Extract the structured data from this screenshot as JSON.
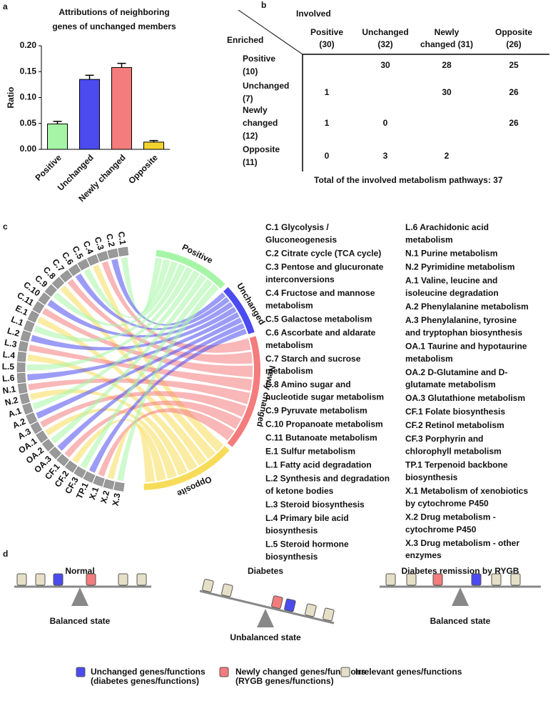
{
  "panel_labels": [
    "a",
    "b",
    "c",
    "d"
  ],
  "chart_data": {
    "type": "bar",
    "title": [
      "Attributions of neighboring",
      "genes of unchanged members"
    ],
    "y_label": "Ratio",
    "categories": [
      "Positive",
      "Unchanged",
      "Newly changed",
      "Opposite"
    ],
    "series": [
      {
        "values": [
          0.049,
          0.135,
          0.158,
          0.014
        ],
        "errors": [
          0.005,
          0.008,
          0.008,
          0.003
        ],
        "colors": [
          "#a6f5a6",
          "#4b4bf0",
          "#f47c7c",
          "#f2d22e"
        ]
      }
    ],
    "ylim": [
      0,
      0.2
    ],
    "yticks": [
      {
        "value": 0,
        "label": "0.00"
      },
      {
        "value": 0.05,
        "label": "0.05"
      },
      {
        "value": 0.1,
        "label": "0.10"
      },
      {
        "value": 0.15,
        "label": "0.15"
      },
      {
        "value": 0.2,
        "label": "0.20"
      }
    ]
  },
  "table": {
    "corner_top": "Involved",
    "corner_left": "Enriched",
    "columns": [
      [
        "Positive",
        "(30)"
      ],
      [
        "Unchanged",
        "(32)"
      ],
      [
        "Newly",
        "changed (31)"
      ],
      [
        "Opposite",
        "(26)"
      ]
    ],
    "row_headers": [
      [
        "Positive",
        "(10)"
      ],
      [
        "Unchanged",
        "(7)"
      ],
      [
        "Newly",
        "changed",
        "(12)"
      ],
      [
        "Opposite",
        "(11)"
      ]
    ],
    "rows": [
      [
        "",
        "30",
        "28",
        "25"
      ],
      [
        "1",
        "",
        "30",
        "26"
      ],
      [
        "1",
        "0",
        "",
        "26"
      ],
      [
        "0",
        "3",
        "2",
        ""
      ]
    ],
    "footer": "Total of the involved metabolism pathways: 37"
  },
  "chord": {
    "groups": [
      {
        "name": "Positive",
        "color": "#a6f5a6"
      },
      {
        "name": "Unchanged",
        "color": "#4b4bf0"
      },
      {
        "name": "Newly changed",
        "color": "#f47c7c"
      },
      {
        "name": "Opposite",
        "color": "#f7dc5a"
      }
    ],
    "pathways": [
      "C.1",
      "C.2",
      "C.3",
      "C.4",
      "C.5",
      "C.6",
      "C.7",
      "C.8",
      "C.9",
      "C.10",
      "C.11",
      "E.1",
      "L.1",
      "L.2",
      "L.3",
      "L.4",
      "L.5",
      "L.6",
      "N.1",
      "N.2",
      "A.1",
      "A.2",
      "A.3",
      "OA.1",
      "OA.2",
      "OA.3",
      "CF.1",
      "CF.2",
      "CF.3",
      "TP.1",
      "X.1",
      "X.2",
      "X.3"
    ]
  },
  "legend_columns": [
    [
      [
        "C.1 Glycolysis /",
        "Gluconeogenesis"
      ],
      [
        "C.2 Citrate cycle (TCA cycle)"
      ],
      [
        "C.3 Pentose and glucuronate",
        "interconversions"
      ],
      [
        "C.4 Fructose and mannose",
        "metabolism"
      ],
      [
        "C.5 Galactose metabolism"
      ],
      [
        "C.6 Ascorbate and aldarate",
        "metabolism"
      ],
      [
        "C.7 Starch and sucrose",
        "metabolism"
      ],
      [
        "C.8 Amino sugar and",
        "nucleotide sugar metabolism"
      ],
      [
        "C.9 Pyruvate metabolism"
      ],
      [
        "C.10 Propanoate metabolism"
      ],
      [
        "C.11 Butanoate metabolism"
      ],
      [
        "E.1 Sulfur metabolism"
      ],
      [
        "L.1 Fatty acid degradation"
      ],
      [
        "L.2 Synthesis and degradation",
        "of ketone bodies"
      ],
      [
        "L.3 Steroid biosynthesis"
      ],
      [
        "L.4 Primary bile acid",
        "biosynthesis"
      ],
      [
        "L.5 Steroid hormone",
        "biosynthesis"
      ]
    ],
    [
      [
        "L.6 Arachidonic acid",
        "metabolism"
      ],
      [
        "N.1 Purine metabolism"
      ],
      [
        "N.2 Pyrimidine metabolism"
      ],
      [
        "A.1 Valine, leucine and",
        "isoleucine degradation"
      ],
      [
        "A.2 Phenylalanine metabolism"
      ],
      [
        "A.3 Phenylalanine, tyrosine",
        "and tryptophan biosynthesis"
      ],
      [
        "OA.1 Taurine and hypotaurine",
        "metabolism"
      ],
      [
        "OA.2 D-Glutamine and D-",
        "glutamate metabolism"
      ],
      [
        "OA.3 Glutathione metabolism"
      ],
      [
        "CF.1 Folate biosynthesis"
      ],
      [
        "CF.2 Retinol metabolism"
      ],
      [
        "CF.3 Porphyrin and",
        "chlorophyll metabolism"
      ],
      [
        "TP.1 Terpenoid backbone",
        "biosynthesis"
      ],
      [
        "X.1 Metabolism of xenobiotics",
        "by cytochrome P450"
      ],
      [
        "X.2 Drug metabolism -",
        "cytochrome P450"
      ],
      [
        "X.3 Drug metabolism - other",
        "enzymes"
      ]
    ]
  ],
  "diagram": {
    "scenes": [
      {
        "title": "Normal",
        "state": "Balanced state"
      },
      {
        "title": "Diabetes",
        "state": "Unbalanced state"
      },
      {
        "title": "Diabetes remission by RYGB",
        "state": "Balanced state"
      }
    ],
    "legend": [
      {
        "lines": [
          "Unchanged genes/functions",
          "(diabetes genes/functions)"
        ],
        "color": "#4b4bf0"
      },
      {
        "lines": [
          "Newly changed genes/functions",
          "(RYGB genes/functions)"
        ],
        "color": "#f47c7c"
      },
      {
        "lines": [
          "Irrelevant genes/functions"
        ],
        "color": "#e6dfc8"
      }
    ]
  }
}
